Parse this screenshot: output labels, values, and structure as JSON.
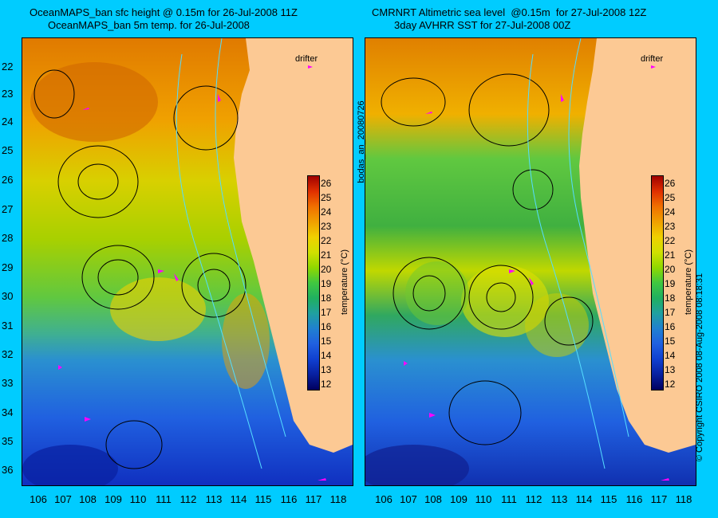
{
  "left": {
    "title1": "OceanMAPS_ban sfc height @ 0.15m for 26-Jul-2008 11Z",
    "title2": "OceanMAPS_ban 5m temp. for 26-Jul-2008"
  },
  "right": {
    "title1": "CMRNRT Altimetric sea level  @0.15m  for 27-Jul-2008 12Z",
    "title2": "3day AVHRR SST for 27-Jul-2008 00Z"
  },
  "latitudes": [
    "22",
    "23",
    "24",
    "25",
    "26",
    "27",
    "28",
    "29",
    "30",
    "31",
    "32",
    "33",
    "34",
    "35",
    "36"
  ],
  "longitudes": [
    "106",
    "107",
    "108",
    "109",
    "110",
    "111",
    "112",
    "113",
    "114",
    "115",
    "116",
    "117",
    "118"
  ],
  "colorbar": {
    "ticks": [
      "26",
      "25",
      "24",
      "23",
      "22",
      "21",
      "20",
      "19",
      "18",
      "17",
      "16",
      "15",
      "14",
      "13",
      "12"
    ],
    "label": "temperature (°C)"
  },
  "drifter_label": "drifter",
  "side_text": {
    "center": "bodas_an_20080726",
    "right": "© Copyright CSIRO 2008    08-Aug-2008 08:18:31"
  },
  "colors": {
    "background": "#00ccff",
    "land": "#fcc994",
    "drifter": "#ff00ff",
    "coast_contour": "#55ddff"
  },
  "icons": [
    "drifter-arrow-icon"
  ]
}
